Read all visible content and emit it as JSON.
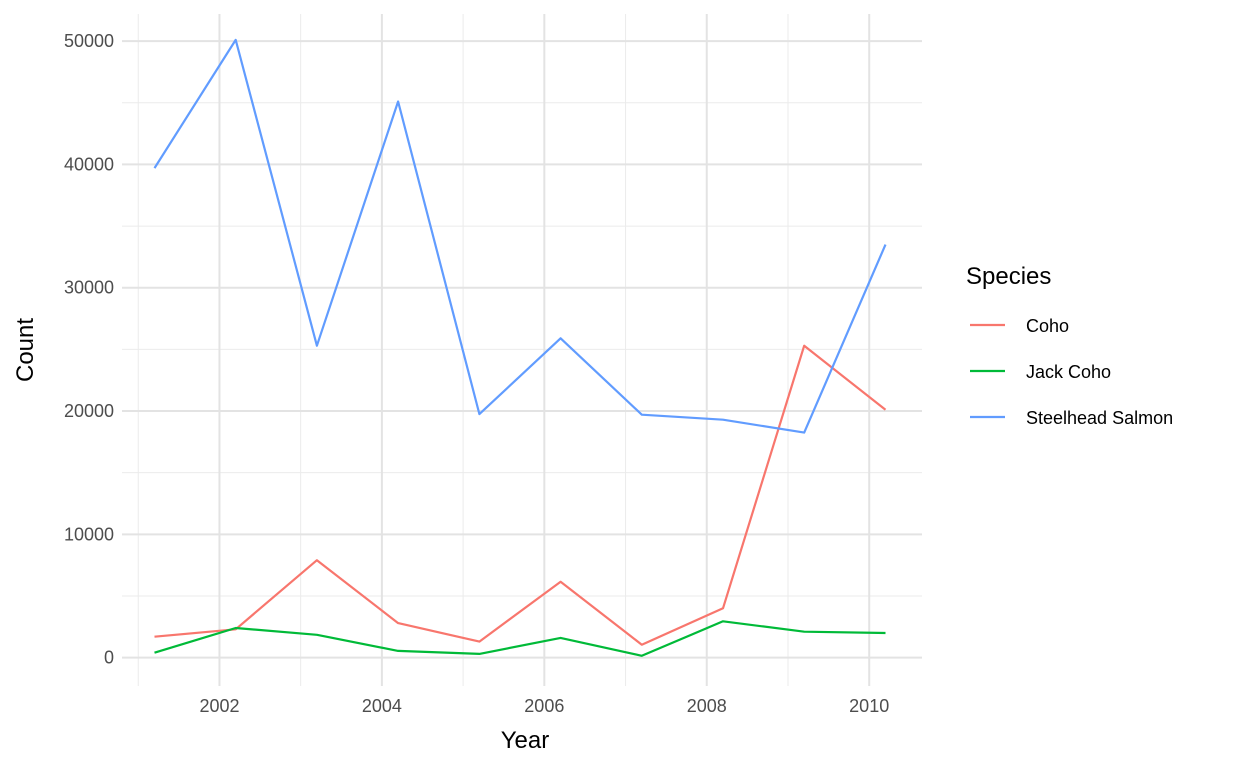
{
  "chart_data": {
    "type": "line",
    "xlabel": "Year",
    "ylabel": "Count",
    "xlim": [
      2000.8,
      2010.65
    ],
    "ylim": [
      -2300,
      52200
    ],
    "x_ticks": [
      2002,
      2004,
      2006,
      2008,
      2010
    ],
    "x_tick_labels": [
      "2002",
      "2004",
      "2006",
      "2008",
      "2010"
    ],
    "y_ticks": [
      0,
      10000,
      20000,
      30000,
      40000,
      50000
    ],
    "y_tick_labels": [
      "0",
      "10000",
      "20000",
      "30000",
      "40000",
      "50000"
    ],
    "grid": true,
    "legend": {
      "title": "Species",
      "placement": "right"
    },
    "x": [
      2001.2,
      2002.2,
      2003.2,
      2004.2,
      2005.2,
      2006.2,
      2007.2,
      2008.2,
      2009.2,
      2010.2
    ],
    "series": [
      {
        "name": "Coho",
        "color": "#F8766D",
        "values": [
          1700,
          2300,
          7900,
          2800,
          1300,
          6150,
          1050,
          4000,
          25300,
          20100
        ]
      },
      {
        "name": "Jack Coho",
        "color": "#00BA38",
        "values": [
          400,
          2400,
          1850,
          550,
          300,
          1600,
          150,
          2950,
          2100,
          2000
        ]
      },
      {
        "name": "Steelhead Salmon",
        "color": "#619CFF",
        "values": [
          39700,
          50100,
          25300,
          45100,
          19750,
          25900,
          19700,
          19300,
          18250,
          33500
        ]
      }
    ]
  }
}
